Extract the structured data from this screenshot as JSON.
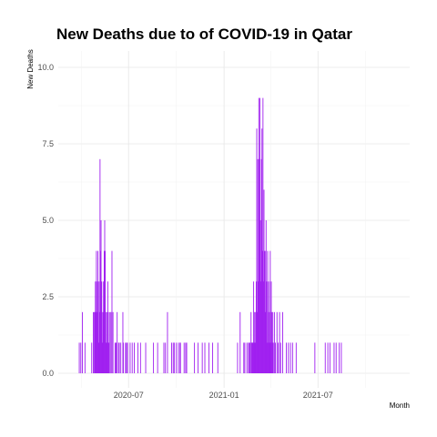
{
  "chart_data": {
    "type": "bar",
    "title": "New Deaths due to of COVID-19 in Qatar",
    "xlabel": "Month",
    "ylabel": "New Deaths",
    "ylim": [
      0,
      10
    ],
    "xlim": [
      "2020-03-17",
      "2022-01-08"
    ],
    "y_ticks": [
      "0.0",
      "2.5",
      "5.0",
      "7.5",
      "10.0"
    ],
    "x_ticks": [
      {
        "date": "2020-07-01",
        "label": "2020-07"
      },
      {
        "date": "2021-01-01",
        "label": "2021-01"
      },
      {
        "date": "2021-07-01",
        "label": "2021-07"
      }
    ],
    "grid": true,
    "bar_color": "#a020f0",
    "series": [
      {
        "values": [
          {
            "x": "2020-03-28",
            "y": 1
          },
          {
            "x": "2020-03-31",
            "y": 1
          },
          {
            "x": "2020-04-03",
            "y": 2
          },
          {
            "x": "2020-04-08",
            "y": 1
          },
          {
            "x": "2020-04-21",
            "y": 1
          },
          {
            "x": "2020-04-24",
            "y": 2
          },
          {
            "x": "2020-04-26",
            "y": 2
          },
          {
            "x": "2020-04-27",
            "y": 2
          },
          {
            "x": "2020-04-28",
            "y": 3
          },
          {
            "x": "2020-04-29",
            "y": 2
          },
          {
            "x": "2020-04-30",
            "y": 4
          },
          {
            "x": "2020-05-01",
            "y": 3
          },
          {
            "x": "2020-05-02",
            "y": 2
          },
          {
            "x": "2020-05-03",
            "y": 4
          },
          {
            "x": "2020-05-04",
            "y": 1
          },
          {
            "x": "2020-05-05",
            "y": 3
          },
          {
            "x": "2020-05-06",
            "y": 2
          },
          {
            "x": "2020-05-07",
            "y": 7
          },
          {
            "x": "2020-05-08",
            "y": 4
          },
          {
            "x": "2020-05-09",
            "y": 5
          },
          {
            "x": "2020-05-10",
            "y": 3
          },
          {
            "x": "2020-05-11",
            "y": 2
          },
          {
            "x": "2020-05-12",
            "y": 1
          },
          {
            "x": "2020-05-13",
            "y": 3
          },
          {
            "x": "2020-05-14",
            "y": 2
          },
          {
            "x": "2020-05-15",
            "y": 4
          },
          {
            "x": "2020-05-16",
            "y": 5
          },
          {
            "x": "2020-05-17",
            "y": 4
          },
          {
            "x": "2020-05-18",
            "y": 2
          },
          {
            "x": "2020-05-19",
            "y": 1
          },
          {
            "x": "2020-05-20",
            "y": 2
          },
          {
            "x": "2020-05-21",
            "y": 1
          },
          {
            "x": "2020-05-22",
            "y": 3
          },
          {
            "x": "2020-05-23",
            "y": 2
          },
          {
            "x": "2020-05-24",
            "y": 1
          },
          {
            "x": "2020-05-26",
            "y": 2
          },
          {
            "x": "2020-05-28",
            "y": 2
          },
          {
            "x": "2020-05-30",
            "y": 4
          },
          {
            "x": "2020-06-01",
            "y": 2
          },
          {
            "x": "2020-06-05",
            "y": 1
          },
          {
            "x": "2020-06-06",
            "y": 1
          },
          {
            "x": "2020-06-08",
            "y": 1
          },
          {
            "x": "2020-06-09",
            "y": 2
          },
          {
            "x": "2020-06-12",
            "y": 1
          },
          {
            "x": "2020-06-13",
            "y": 1
          },
          {
            "x": "2020-06-16",
            "y": 1
          },
          {
            "x": "2020-06-20",
            "y": 2
          },
          {
            "x": "2020-06-21",
            "y": 1
          },
          {
            "x": "2020-06-25",
            "y": 1
          },
          {
            "x": "2020-06-27",
            "y": 1
          },
          {
            "x": "2020-06-29",
            "y": 1
          },
          {
            "x": "2020-07-04",
            "y": 1
          },
          {
            "x": "2020-07-08",
            "y": 1
          },
          {
            "x": "2020-07-12",
            "y": 1
          },
          {
            "x": "2020-07-19",
            "y": 1
          },
          {
            "x": "2020-07-24",
            "y": 1
          },
          {
            "x": "2020-08-03",
            "y": 1
          },
          {
            "x": "2020-08-18",
            "y": 1
          },
          {
            "x": "2020-08-26",
            "y": 1
          },
          {
            "x": "2020-09-07",
            "y": 1
          },
          {
            "x": "2020-09-10",
            "y": 1
          },
          {
            "x": "2020-09-14",
            "y": 2
          },
          {
            "x": "2020-09-22",
            "y": 1
          },
          {
            "x": "2020-09-25",
            "y": 1
          },
          {
            "x": "2020-09-27",
            "y": 1
          },
          {
            "x": "2020-10-01",
            "y": 1
          },
          {
            "x": "2020-10-05",
            "y": 1
          },
          {
            "x": "2020-10-08",
            "y": 1
          },
          {
            "x": "2020-10-09",
            "y": 1
          },
          {
            "x": "2020-10-16",
            "y": 1
          },
          {
            "x": "2020-10-19",
            "y": 1
          },
          {
            "x": "2020-10-21",
            "y": 1
          },
          {
            "x": "2020-11-05",
            "y": 1
          },
          {
            "x": "2020-11-12",
            "y": 1
          },
          {
            "x": "2020-11-20",
            "y": 1
          },
          {
            "x": "2020-11-25",
            "y": 1
          },
          {
            "x": "2020-12-03",
            "y": 1
          },
          {
            "x": "2020-12-10",
            "y": 1
          },
          {
            "x": "2020-12-20",
            "y": 1
          },
          {
            "x": "2021-01-27",
            "y": 1
          },
          {
            "x": "2021-02-01",
            "y": 2
          },
          {
            "x": "2021-02-08",
            "y": 1
          },
          {
            "x": "2021-02-10",
            "y": 1
          },
          {
            "x": "2021-02-14",
            "y": 1
          },
          {
            "x": "2021-02-17",
            "y": 1
          },
          {
            "x": "2021-02-19",
            "y": 1
          },
          {
            "x": "2021-02-20",
            "y": 1
          },
          {
            "x": "2021-02-22",
            "y": 2
          },
          {
            "x": "2021-02-23",
            "y": 1
          },
          {
            "x": "2021-02-24",
            "y": 1
          },
          {
            "x": "2021-02-25",
            "y": 1
          },
          {
            "x": "2021-02-26",
            "y": 1
          },
          {
            "x": "2021-02-27",
            "y": 3
          },
          {
            "x": "2021-02-28",
            "y": 1
          },
          {
            "x": "2021-03-01",
            "y": 2
          },
          {
            "x": "2021-03-02",
            "y": 1
          },
          {
            "x": "2021-03-03",
            "y": 2
          },
          {
            "x": "2021-03-04",
            "y": 3
          },
          {
            "x": "2021-03-05",
            "y": 8
          },
          {
            "x": "2021-03-06",
            "y": 2
          },
          {
            "x": "2021-03-07",
            "y": 7
          },
          {
            "x": "2021-03-08",
            "y": 3
          },
          {
            "x": "2021-03-09",
            "y": 9
          },
          {
            "x": "2021-03-10",
            "y": 7
          },
          {
            "x": "2021-03-11",
            "y": 9
          },
          {
            "x": "2021-03-12",
            "y": 5
          },
          {
            "x": "2021-03-13",
            "y": 3
          },
          {
            "x": "2021-03-14",
            "y": 7
          },
          {
            "x": "2021-03-15",
            "y": 8
          },
          {
            "x": "2021-03-16",
            "y": 4
          },
          {
            "x": "2021-03-17",
            "y": 9
          },
          {
            "x": "2021-03-18",
            "y": 3
          },
          {
            "x": "2021-03-19",
            "y": 6
          },
          {
            "x": "2021-03-20",
            "y": 4
          },
          {
            "x": "2021-03-21",
            "y": 2
          },
          {
            "x": "2021-03-22",
            "y": 4
          },
          {
            "x": "2021-03-23",
            "y": 5
          },
          {
            "x": "2021-03-24",
            "y": 3
          },
          {
            "x": "2021-03-25",
            "y": 1
          },
          {
            "x": "2021-03-26",
            "y": 4
          },
          {
            "x": "2021-03-27",
            "y": 2
          },
          {
            "x": "2021-03-28",
            "y": 3
          },
          {
            "x": "2021-03-29",
            "y": 1
          },
          {
            "x": "2021-03-30",
            "y": 2
          },
          {
            "x": "2021-03-31",
            "y": 4
          },
          {
            "x": "2021-04-01",
            "y": 1
          },
          {
            "x": "2021-04-02",
            "y": 3
          },
          {
            "x": "2021-04-03",
            "y": 2
          },
          {
            "x": "2021-04-04",
            "y": 1
          },
          {
            "x": "2021-04-05",
            "y": 2
          },
          {
            "x": "2021-04-06",
            "y": 1
          },
          {
            "x": "2021-04-08",
            "y": 2
          },
          {
            "x": "2021-04-10",
            "y": 1
          },
          {
            "x": "2021-04-13",
            "y": 2
          },
          {
            "x": "2021-04-15",
            "y": 1
          },
          {
            "x": "2021-04-18",
            "y": 2
          },
          {
            "x": "2021-04-20",
            "y": 1
          },
          {
            "x": "2021-04-24",
            "y": 2
          },
          {
            "x": "2021-05-01",
            "y": 1
          },
          {
            "x": "2021-05-05",
            "y": 1
          },
          {
            "x": "2021-05-09",
            "y": 1
          },
          {
            "x": "2021-05-13",
            "y": 1
          },
          {
            "x": "2021-05-20",
            "y": 1
          },
          {
            "x": "2021-06-25",
            "y": 1
          },
          {
            "x": "2021-07-15",
            "y": 1
          },
          {
            "x": "2021-07-20",
            "y": 1
          },
          {
            "x": "2021-07-24",
            "y": 1
          },
          {
            "x": "2021-08-01",
            "y": 1
          },
          {
            "x": "2021-08-05",
            "y": 1
          },
          {
            "x": "2021-08-11",
            "y": 1
          },
          {
            "x": "2021-08-15",
            "y": 1
          }
        ]
      }
    ]
  }
}
